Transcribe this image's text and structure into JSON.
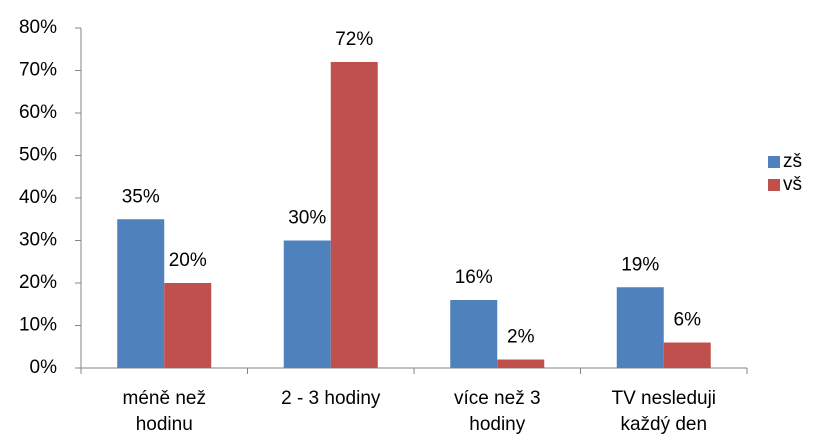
{
  "chart_data": {
    "type": "bar",
    "categories": [
      "méně než hodinu",
      "2 - 3 hodiny",
      "více než 3 hodiny",
      "TV nesleduji každý den"
    ],
    "series": [
      {
        "name": "zš",
        "color": "#4f81bd",
        "values": [
          35,
          30,
          16,
          19
        ],
        "value_labels": [
          "35%",
          "30%",
          "16%",
          "19%"
        ]
      },
      {
        "name": "vš",
        "color": "#c0504d",
        "values": [
          20,
          72,
          2,
          6
        ],
        "value_labels": [
          "20%",
          "72%",
          "2%",
          "6%"
        ]
      }
    ],
    "ylim": [
      0,
      80
    ],
    "yticks": [
      {
        "value": 0,
        "label": "0%"
      },
      {
        "value": 10,
        "label": "10%"
      },
      {
        "value": 20,
        "label": "20%"
      },
      {
        "value": 30,
        "label": "30%"
      },
      {
        "value": 40,
        "label": "40%"
      },
      {
        "value": 50,
        "label": "50%"
      },
      {
        "value": 60,
        "label": "60%"
      },
      {
        "value": 70,
        "label": "70%"
      },
      {
        "value": 80,
        "label": "80%"
      }
    ],
    "legend": "right"
  }
}
